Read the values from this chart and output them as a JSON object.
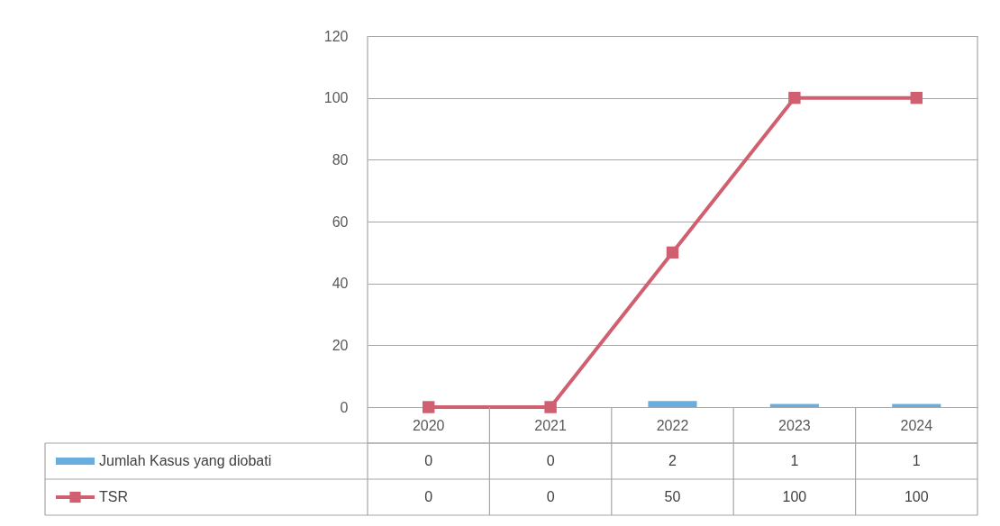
{
  "chart_data": {
    "type": "bar",
    "categories": [
      "2020",
      "2021",
      "2022",
      "2023",
      "2024"
    ],
    "series": [
      {
        "name": "Jumlah Kasus yang diobati",
        "color": "#6aaee0",
        "values": [
          0,
          0,
          2,
          1,
          1
        ]
      },
      {
        "name": "TSR",
        "type": "line",
        "color": "#d0606f",
        "values": [
          0,
          0,
          50,
          100,
          100
        ]
      }
    ],
    "ylim": [
      0,
      120
    ],
    "yticks": [
      0,
      20,
      40,
      60,
      80,
      100,
      120
    ],
    "grid": "y",
    "legend": "bottom",
    "data_labels": true,
    "marker": "square"
  }
}
